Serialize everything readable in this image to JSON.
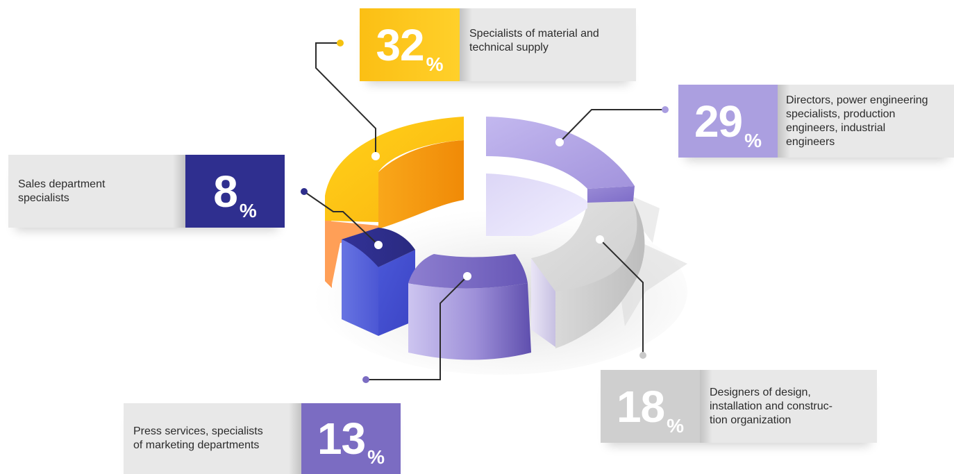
{
  "chart_data": {
    "type": "pie",
    "categories": [
      "Specialists of material and technical supply",
      "Directors, power engineering specialists, production engineers, industrial engineers",
      "Designers of design, installation and construc-tion organization",
      "Press services, specialists of marketing departments",
      "Sales department specialists"
    ],
    "values": [
      32,
      29,
      18,
      13,
      8
    ],
    "unit": "%"
  },
  "items": [
    {
      "id": "supply",
      "pct": "32",
      "sign": "%",
      "label_lines": [
        "Specialists of material and",
        "technical supply"
      ],
      "color": "#fdbb1c",
      "dot_color": "#f5c20e"
    },
    {
      "id": "directors",
      "pct": "29",
      "sign": "%",
      "label_lines": [
        "Directors, power engineering",
        "specialists, production",
        "engineers, industrial",
        "engineers"
      ],
      "color": "#ab9fe0",
      "dot_color": "#a99de0"
    },
    {
      "id": "designers",
      "pct": "18",
      "sign": "%",
      "label_lines": [
        "Designers of design,",
        "installation and construc-",
        "tion organization"
      ],
      "color": "#cfcfcf",
      "dot_color": "#c8c8c8"
    },
    {
      "id": "press",
      "pct": "13",
      "sign": "%",
      "label_lines": [
        "Press services, specialists",
        "of marketing departments"
      ],
      "color": "#7f6fc4",
      "dot_color": "#7b6cc2"
    },
    {
      "id": "sales",
      "pct": "8",
      "sign": "%",
      "label_lines": [
        "Sales department",
        "specialists"
      ],
      "color": "#2f2f8f",
      "dot_color": "#2e2e8c"
    }
  ]
}
